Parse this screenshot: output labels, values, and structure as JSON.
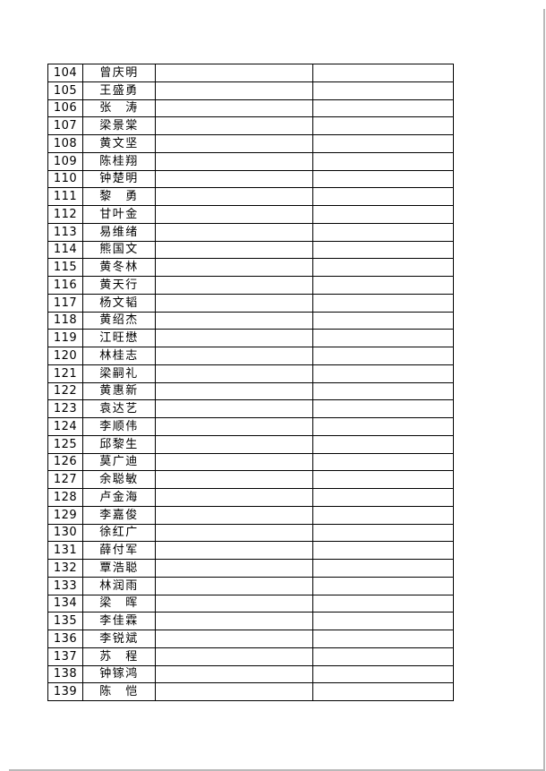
{
  "colors": {
    "table_border": "#000000",
    "page_edge": "#b9b9b9",
    "text": "#000000",
    "background": "#ffffff"
  },
  "table": {
    "column_keys": [
      "number",
      "name",
      "blank1",
      "blank2"
    ],
    "rows": [
      {
        "number": "104",
        "name": "曾庆明"
      },
      {
        "number": "105",
        "name": "王盛勇"
      },
      {
        "number": "106",
        "name": "张　涛"
      },
      {
        "number": "107",
        "name": "梁景棠"
      },
      {
        "number": "108",
        "name": "黄文坚"
      },
      {
        "number": "109",
        "name": "陈桂翔"
      },
      {
        "number": "110",
        "name": "钟楚明"
      },
      {
        "number": "111",
        "name": "黎　勇"
      },
      {
        "number": "112",
        "name": "甘叶金"
      },
      {
        "number": "113",
        "name": "易维绪"
      },
      {
        "number": "114",
        "name": "熊国文"
      },
      {
        "number": "115",
        "name": "黄冬林"
      },
      {
        "number": "116",
        "name": "黄天行"
      },
      {
        "number": "117",
        "name": "杨文韬"
      },
      {
        "number": "118",
        "name": "黄绍杰"
      },
      {
        "number": "119",
        "name": "江旺懋"
      },
      {
        "number": "120",
        "name": "林桂志"
      },
      {
        "number": "121",
        "name": "梁嗣礼"
      },
      {
        "number": "122",
        "name": "黄惠新"
      },
      {
        "number": "123",
        "name": "袁达艺"
      },
      {
        "number": "124",
        "name": "李顺伟"
      },
      {
        "number": "125",
        "name": "邱黎生"
      },
      {
        "number": "126",
        "name": "莫广迪"
      },
      {
        "number": "127",
        "name": "余聪敏"
      },
      {
        "number": "128",
        "name": "卢金海"
      },
      {
        "number": "129",
        "name": "李嘉俊"
      },
      {
        "number": "130",
        "name": "徐红广"
      },
      {
        "number": "131",
        "name": "薛付军"
      },
      {
        "number": "132",
        "name": "覃浩聪"
      },
      {
        "number": "133",
        "name": "林润雨"
      },
      {
        "number": "134",
        "name": "梁　晖"
      },
      {
        "number": "135",
        "name": "李佳霖"
      },
      {
        "number": "136",
        "name": "李锐斌"
      },
      {
        "number": "137",
        "name": "苏　程"
      },
      {
        "number": "138",
        "name": "钟镓鸿"
      },
      {
        "number": "139",
        "name": "陈　恺"
      }
    ]
  }
}
